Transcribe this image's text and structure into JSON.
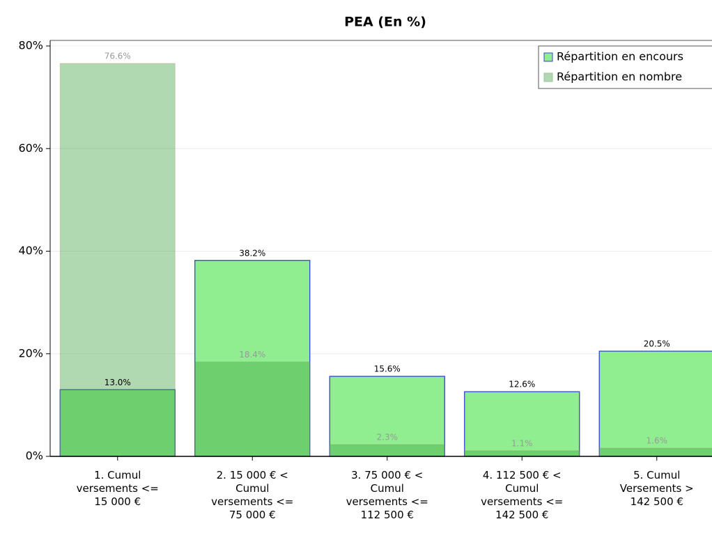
{
  "chart_data": {
    "type": "bar",
    "title": "PEA (En %)",
    "categories": [
      "1. Cumul\nversements <=\n15 000 €",
      "2. 15 000 € <\nCumul\nversements <=\n75 000 €",
      "3. 75 000 € <\nCumul\nversements <=\n112 500 €",
      "4. 112 500 € <\nCumul\nversements <=\n142 500 €",
      "5. Cumul\nVersements >\n142 500 €"
    ],
    "series": [
      {
        "name": "Répartition en encours",
        "color": "#90ee90",
        "values": [
          13.0,
          38.2,
          15.6,
          12.6,
          20.5
        ],
        "value_labels": [
          "13.0%",
          "38.2%",
          "15.6%",
          "12.6%",
          "20.5%"
        ]
      },
      {
        "name": "Répartition en nombre",
        "color": "#3ca03c",
        "values": [
          76.6,
          18.4,
          2.3,
          1.1,
          1.6
        ],
        "value_labels": [
          "76.6%",
          "18.4%",
          "2.3%",
          "1.1%",
          "1.6%"
        ]
      }
    ],
    "ylim": [
      0,
      80
    ],
    "yticks": [
      {
        "value": 0,
        "label": "0%"
      },
      {
        "value": 20,
        "label": "20%"
      },
      {
        "value": 40,
        "label": "40%"
      },
      {
        "value": 60,
        "label": "60%"
      },
      {
        "value": 80,
        "label": "80%"
      }
    ],
    "grid": true,
    "legend": "upper right"
  }
}
